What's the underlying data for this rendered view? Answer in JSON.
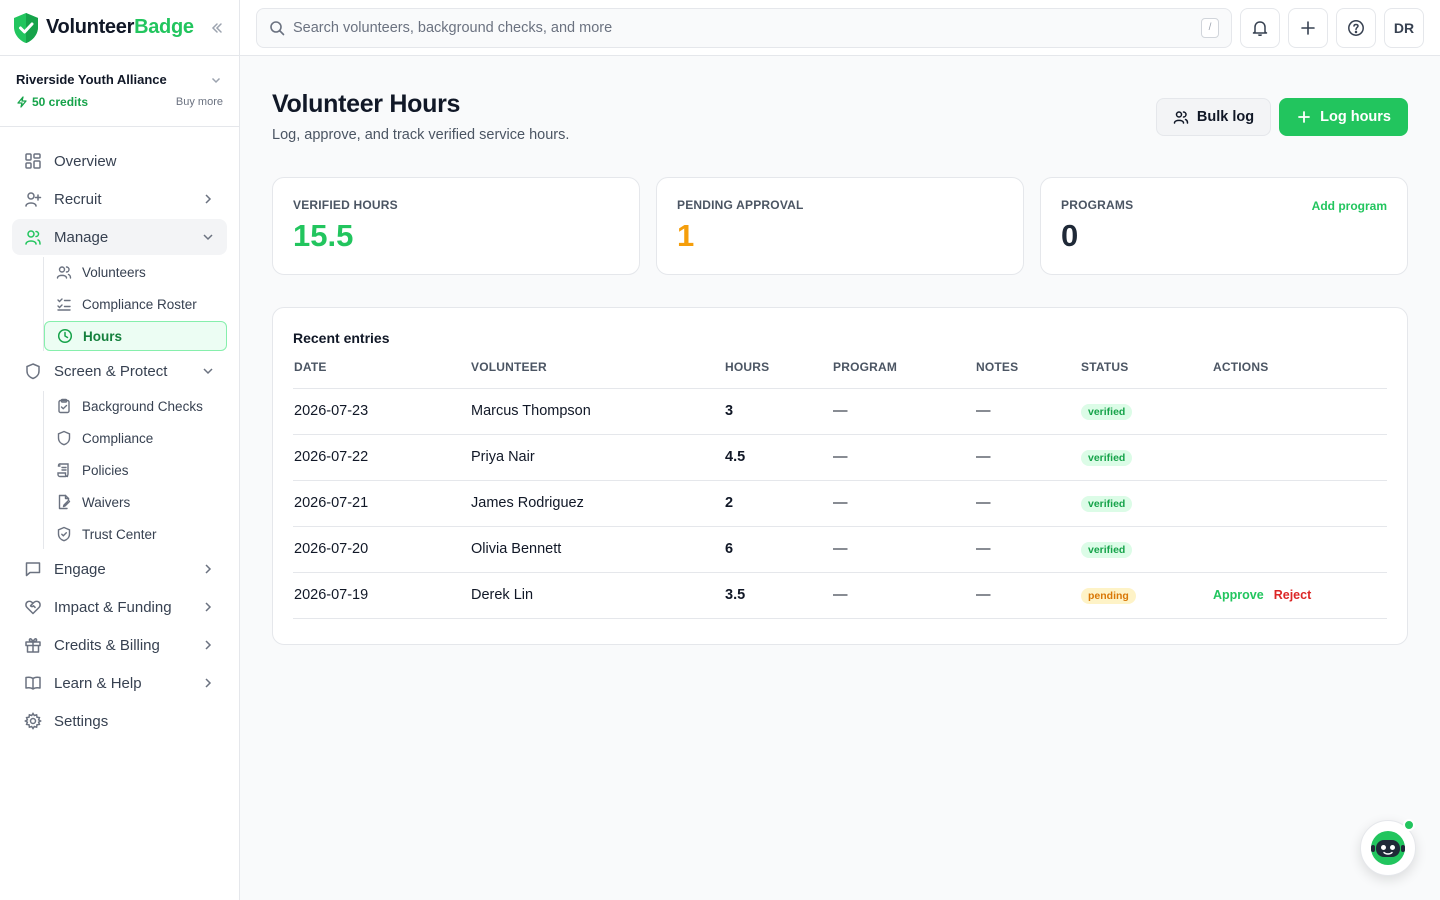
{
  "brand": {
    "name_main": "Volunteer",
    "name_accent": "Badge"
  },
  "org": {
    "name": "Riverside Youth Alliance",
    "credits": "50 credits",
    "buy_more": "Buy more"
  },
  "nav": {
    "overview": "Overview",
    "recruit": "Recruit",
    "manage": "Manage",
    "manage_items": [
      "Volunteers",
      "Compliance Roster",
      "Hours"
    ],
    "screen": "Screen & Protect",
    "screen_items": [
      "Background Checks",
      "Compliance",
      "Policies",
      "Waivers",
      "Trust Center"
    ],
    "engage": "Engage",
    "impact": "Impact & Funding",
    "credits": "Credits & Billing",
    "learn": "Learn & Help",
    "settings": "Settings"
  },
  "search": {
    "placeholder": "Search volunteers, background checks, and more",
    "shortcut": "/"
  },
  "user": {
    "initials": "DR"
  },
  "page": {
    "title": "Volunteer Hours",
    "subtitle": "Log, approve, and track verified service hours.",
    "bulk_log": "Bulk log",
    "log_hours": "Log hours"
  },
  "stats": {
    "verified": {
      "label": "VERIFIED HOURS",
      "value": "15.5",
      "color": "#22c55e"
    },
    "pending": {
      "label": "PENDING APPROVAL",
      "value": "1",
      "color": "#f59e0b"
    },
    "programs": {
      "label": "PROGRAMS",
      "value": "0",
      "color": "#1f2937",
      "link": "Add program"
    }
  },
  "entries": {
    "title": "Recent entries",
    "columns": [
      "DATE",
      "VOLUNTEER",
      "HOURS",
      "PROGRAM",
      "NOTES",
      "STATUS",
      "ACTIONS"
    ],
    "rows": [
      {
        "date": "2026-07-23",
        "volunteer": "Marcus Thompson",
        "hours": "3",
        "program": "—",
        "notes": "—",
        "status": "verified"
      },
      {
        "date": "2026-07-22",
        "volunteer": "Priya Nair",
        "hours": "4.5",
        "program": "—",
        "notes": "—",
        "status": "verified"
      },
      {
        "date": "2026-07-21",
        "volunteer": "James Rodriguez",
        "hours": "2",
        "program": "—",
        "notes": "—",
        "status": "verified"
      },
      {
        "date": "2026-07-20",
        "volunteer": "Olivia Bennett",
        "hours": "6",
        "program": "—",
        "notes": "—",
        "status": "verified"
      },
      {
        "date": "2026-07-19",
        "volunteer": "Derek Lin",
        "hours": "3.5",
        "program": "—",
        "notes": "—",
        "status": "pending",
        "approve": "Approve",
        "reject": "Reject"
      }
    ]
  }
}
